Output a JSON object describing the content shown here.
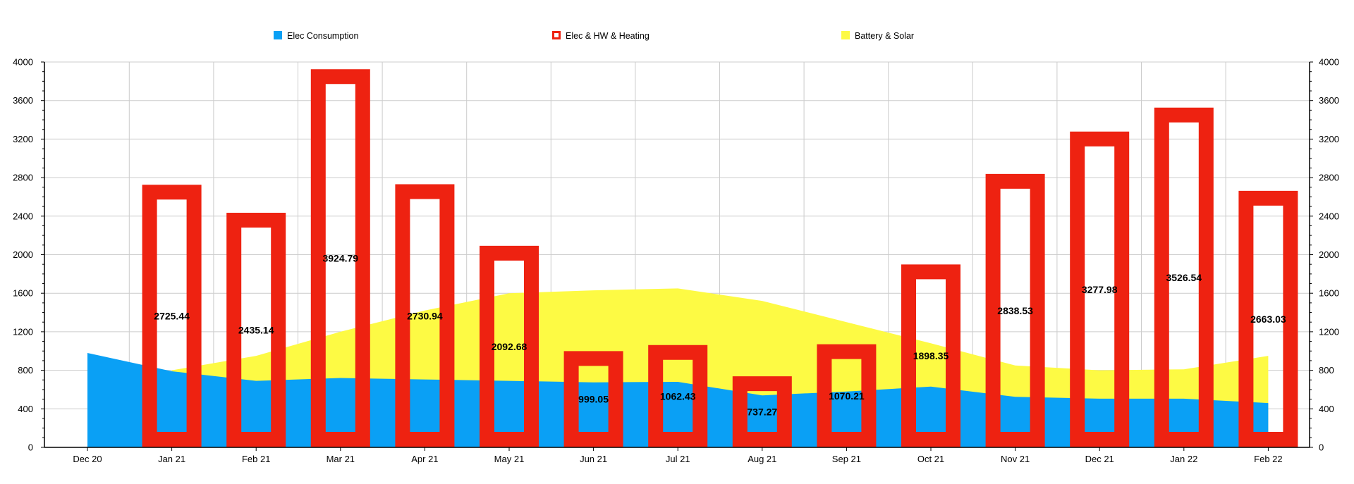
{
  "chart_data": {
    "type": "bar",
    "categories": [
      "Dec 20",
      "Jan 21",
      "Feb 21",
      "Mar 21",
      "Apr 21",
      "May 21",
      "Jun 21",
      "Jul 21",
      "Aug 21",
      "Sep 21",
      "Oct 21",
      "Nov 21",
      "Dec 21",
      "Jan 22",
      "Feb 22"
    ],
    "ylim": [
      0,
      4000
    ],
    "y_ticks": [
      "0",
      "400",
      "800",
      "1200",
      "1600",
      "2000",
      "2400",
      "2800",
      "3200",
      "3600",
      "4000"
    ],
    "grid": true,
    "legend_position": "top",
    "series": [
      {
        "name": "Elec Consumption",
        "kind": "area",
        "color": "#0aa0f5",
        "values": [
          980,
          790,
          690,
          720,
          705,
          690,
          675,
          680,
          540,
          580,
          630,
          525,
          505,
          505,
          460
        ]
      },
      {
        "name": "Elec & HW & Heating",
        "kind": "bar-outline",
        "color": "#ee2211",
        "values": [
          null,
          2725.44,
          2435.14,
          3924.79,
          2730.94,
          2092.68,
          999.05,
          1062.43,
          737.27,
          1070.21,
          1898.35,
          2838.53,
          3277.98,
          3526.54,
          2663.03
        ],
        "labels": [
          "",
          "2725.44",
          "2435.14",
          "3924.79",
          "2730.94",
          "2092.68",
          "999.05",
          "1062.43",
          "737.27",
          "1070.21",
          "1898.35",
          "2838.53",
          "3277.98",
          "3526.54",
          "2663.03"
        ]
      },
      {
        "name": "Battery & Solar",
        "kind": "area",
        "color": "#fdfa44",
        "values": [
          null,
          800,
          950,
          1200,
          1420,
          1600,
          1630,
          1650,
          1520,
          1300,
          1080,
          850,
          800,
          810,
          950
        ]
      }
    ]
  }
}
